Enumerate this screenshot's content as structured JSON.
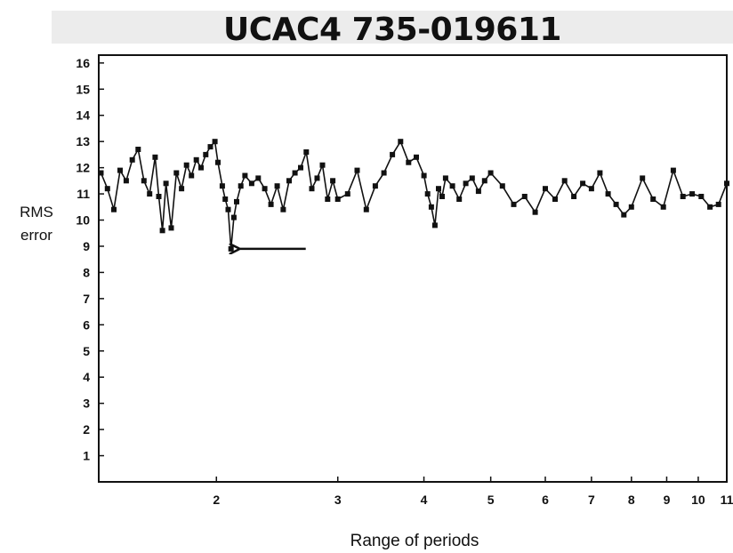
{
  "chart_data": {
    "type": "line",
    "title": "UCAC4  735-019611",
    "xlabel": "Range of periods",
    "ylabel": [
      "RMS",
      "error"
    ],
    "xscale": "log",
    "xlim": [
      1.35,
      11
    ],
    "ylim": [
      0,
      16.3
    ],
    "x_ticks": [
      2,
      3,
      4,
      5,
      6,
      7,
      8,
      9,
      10,
      11
    ],
    "y_ticks": [
      1,
      2,
      3,
      4,
      5,
      6,
      7,
      8,
      9,
      10,
      11,
      12,
      13,
      14,
      15,
      16
    ],
    "grid": false,
    "series": [
      {
        "x": [
          1.36,
          1.39,
          1.42,
          1.45,
          1.48,
          1.51,
          1.54,
          1.57,
          1.6,
          1.63,
          1.65,
          1.67,
          1.69,
          1.72,
          1.75,
          1.78,
          1.81,
          1.84,
          1.87,
          1.9,
          1.93,
          1.96,
          1.99,
          2.01,
          2.04,
          2.06,
          2.08,
          2.1,
          2.12,
          2.14,
          2.17,
          2.2,
          2.25,
          2.3,
          2.35,
          2.4,
          2.45,
          2.5,
          2.55,
          2.6,
          2.65,
          2.7,
          2.75,
          2.8,
          2.85,
          2.9,
          2.95,
          3.0,
          3.1,
          3.2,
          3.3,
          3.4,
          3.5,
          3.6,
          3.7,
          3.8,
          3.9,
          4.0,
          4.05,
          4.1,
          4.15,
          4.2,
          4.25,
          4.3,
          4.4,
          4.5,
          4.6,
          4.7,
          4.8,
          4.9,
          5.0,
          5.2,
          5.4,
          5.6,
          5.8,
          6.0,
          6.2,
          6.4,
          6.6,
          6.8,
          7.0,
          7.2,
          7.4,
          7.6,
          7.8,
          8.0,
          8.3,
          8.6,
          8.9,
          9.2,
          9.5,
          9.8,
          10.1,
          10.4,
          10.7,
          11.0
        ],
        "y": [
          11.8,
          11.2,
          10.4,
          11.9,
          11.5,
          12.3,
          12.7,
          11.5,
          11.0,
          12.4,
          10.9,
          9.6,
          11.4,
          9.7,
          11.8,
          11.2,
          12.1,
          11.7,
          12.3,
          12.0,
          12.5,
          12.8,
          13.0,
          12.2,
          11.3,
          10.8,
          10.4,
          8.9,
          10.1,
          10.7,
          11.3,
          11.7,
          11.4,
          11.6,
          11.2,
          10.6,
          11.3,
          10.4,
          11.5,
          11.8,
          12.0,
          12.6,
          11.2,
          11.6,
          12.1,
          10.8,
          11.5,
          10.8,
          11.0,
          11.9,
          10.4,
          11.3,
          11.8,
          12.5,
          13.0,
          12.2,
          12.4,
          11.7,
          11.0,
          10.5,
          9.8,
          11.2,
          10.9,
          11.6,
          11.3,
          10.8,
          11.4,
          11.6,
          11.1,
          11.5,
          11.8,
          11.3,
          10.6,
          10.9,
          10.3,
          11.2,
          10.8,
          11.5,
          10.9,
          11.4,
          11.2,
          11.8,
          11.0,
          10.6,
          10.2,
          10.5,
          11.6,
          10.8,
          10.5,
          11.9,
          10.9,
          11.0,
          10.9,
          10.5,
          10.6,
          11.4
        ]
      }
    ],
    "annotations": [
      {
        "type": "arrow",
        "direction": "left",
        "points_to": [
          2.1,
          8.9
        ]
      }
    ]
  }
}
